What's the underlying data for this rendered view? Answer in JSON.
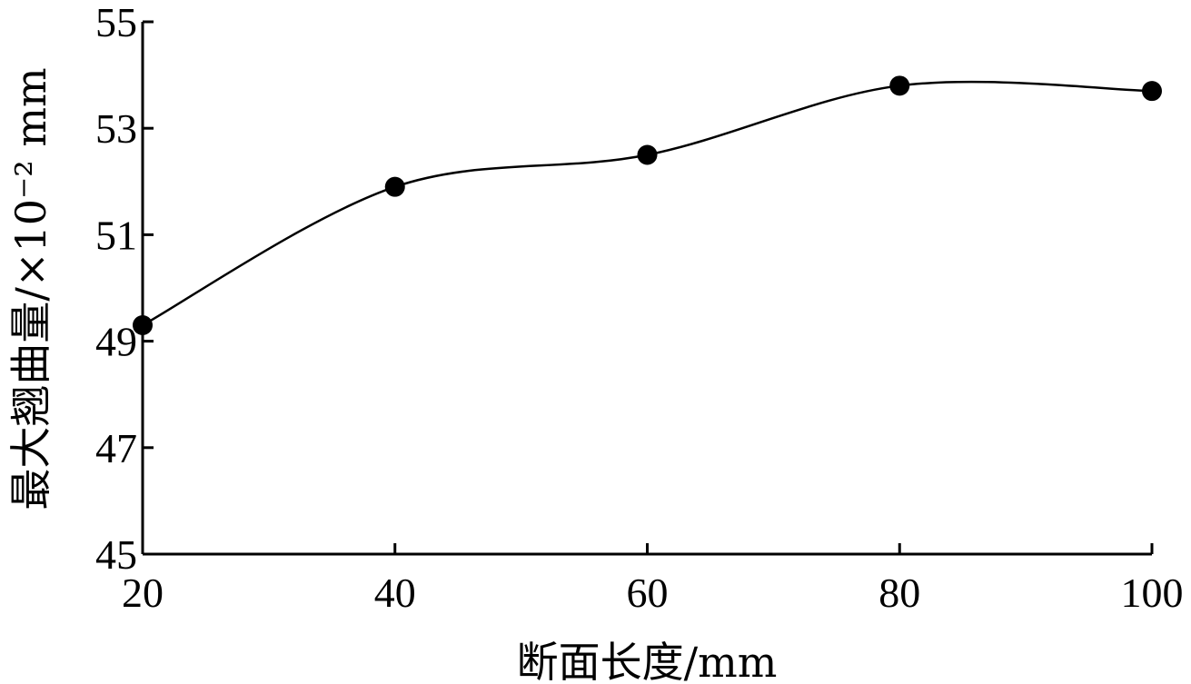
{
  "chart_data": {
    "type": "line",
    "xlabel": "断面长度/mm",
    "ylabel": "最大翘曲量/×10⁻² mm",
    "x": [
      20,
      40,
      60,
      80,
      100
    ],
    "series": [
      {
        "values": [
          49.3,
          51.9,
          52.5,
          53.8,
          53.7
        ]
      }
    ],
    "xlim": [
      20,
      100
    ],
    "ylim": [
      45,
      55
    ],
    "x_ticks": [
      "20",
      "40",
      "60",
      "80",
      "100"
    ],
    "y_ticks": [
      "45",
      "47",
      "49",
      "51",
      "53",
      "55"
    ],
    "grid": false,
    "line_color": "#000000",
    "marker": "filled-circle"
  }
}
